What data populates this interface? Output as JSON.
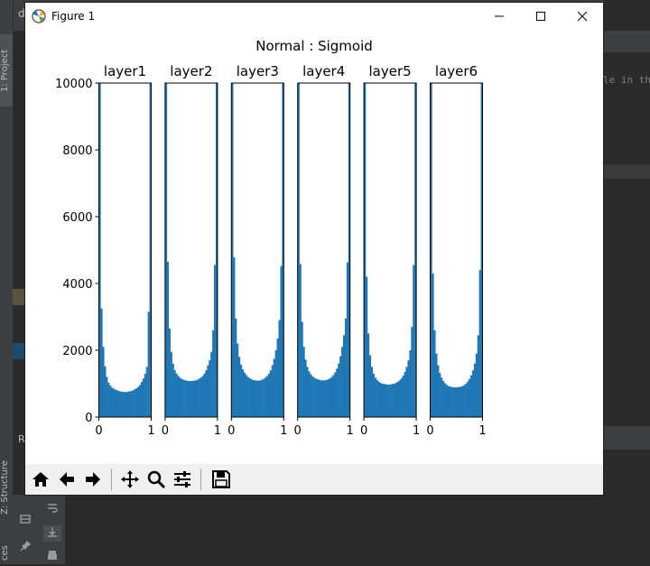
{
  "ide": {
    "top_text": "d",
    "project_tab": "1: Project",
    "structure_tab": "Z: Structure",
    "bottom_tab": "ces",
    "code_tail": "le in th",
    "run_letter": "R"
  },
  "window": {
    "title": "Figure 1",
    "minimize_label": "Minimize",
    "maximize_label": "Maximize",
    "close_label": "Close"
  },
  "toolbar": {
    "buttons": [
      "home-icon",
      "back-arrow-icon",
      "forward-arrow-icon",
      "pan-icon",
      "zoom-icon",
      "configure-subplots-icon",
      "save-icon"
    ]
  },
  "chart_data": {
    "type": "bar",
    "suptitle": "Normal : Sigmoid",
    "ylim": [
      0,
      10000
    ],
    "yticks": [
      0,
      2000,
      4000,
      6000,
      8000,
      10000
    ],
    "xlim": [
      0,
      1
    ],
    "xticks": [
      0,
      1
    ],
    "color": "#1f77b4",
    "bins": 30,
    "panels": [
      {
        "title": "layer1",
        "values": [
          10000,
          3250,
          2100,
          1520,
          1200,
          1030,
          950,
          880,
          850,
          820,
          800,
          780,
          760,
          760,
          750,
          750,
          760,
          770,
          780,
          800,
          830,
          860,
          900,
          960,
          1050,
          1150,
          1300,
          1500,
          3150,
          10000
        ]
      },
      {
        "title": "layer2",
        "values": [
          10000,
          4650,
          2650,
          1950,
          1600,
          1400,
          1300,
          1230,
          1180,
          1140,
          1120,
          1100,
          1090,
          1080,
          1080,
          1080,
          1090,
          1100,
          1120,
          1150,
          1180,
          1230,
          1300,
          1400,
          1550,
          1700,
          1950,
          2600,
          4550,
          10000
        ]
      },
      {
        "title": "layer3",
        "values": [
          10000,
          4780,
          2950,
          2200,
          1800,
          1570,
          1430,
          1330,
          1260,
          1200,
          1160,
          1130,
          1110,
          1100,
          1090,
          1090,
          1100,
          1120,
          1140,
          1180,
          1230,
          1300,
          1400,
          1550,
          1750,
          2000,
          2350,
          2900,
          4520,
          10000
        ]
      },
      {
        "title": "layer4",
        "values": [
          10000,
          4580,
          2850,
          2100,
          1720,
          1500,
          1370,
          1280,
          1220,
          1180,
          1150,
          1130,
          1110,
          1100,
          1100,
          1100,
          1110,
          1130,
          1160,
          1200,
          1260,
          1340,
          1450,
          1600,
          1820,
          2100,
          2450,
          2950,
          4630,
          10000
        ]
      },
      {
        "title": "layer5",
        "values": [
          10000,
          4200,
          2500,
          1850,
          1500,
          1300,
          1180,
          1110,
          1060,
          1020,
          1000,
          990,
          980,
          970,
          970,
          980,
          990,
          1000,
          1030,
          1060,
          1100,
          1160,
          1240,
          1350,
          1500,
          1700,
          2000,
          2700,
          4550,
          10000
        ]
      },
      {
        "title": "layer6",
        "values": [
          10000,
          4300,
          2600,
          1900,
          1550,
          1320,
          1180,
          1080,
          1010,
          960,
          930,
          910,
          900,
          890,
          890,
          890,
          900,
          910,
          930,
          960,
          1000,
          1060,
          1140,
          1250,
          1400,
          1600,
          1900,
          2450,
          4400,
          10000
        ]
      }
    ]
  }
}
